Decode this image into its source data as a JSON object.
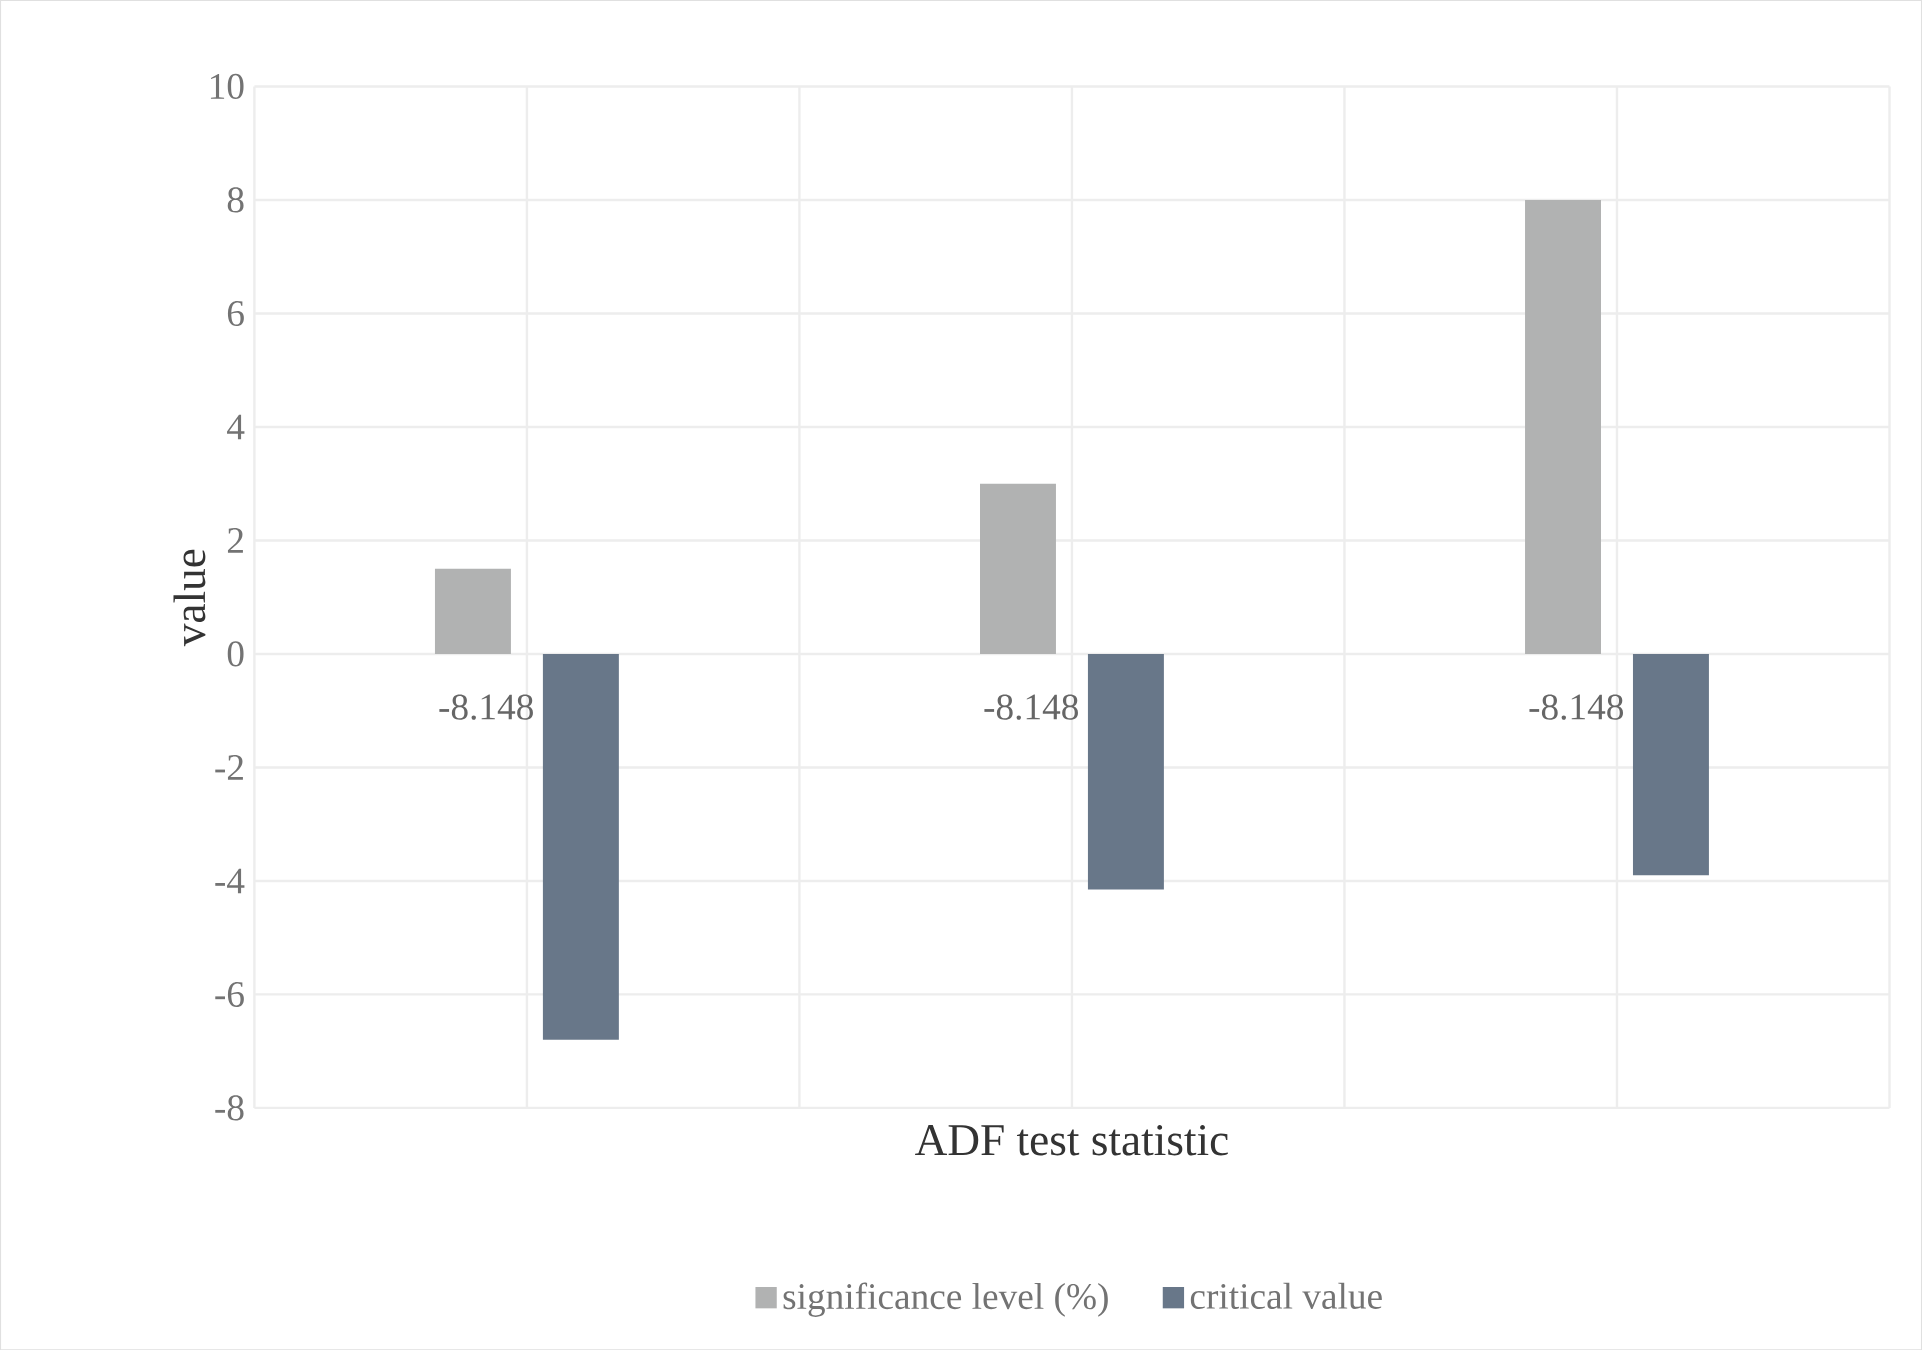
{
  "chart_data": {
    "type": "bar",
    "xlabel": "ADF test statistic",
    "ylabel": "value",
    "categories": [
      null,
      null,
      null
    ],
    "series": [
      {
        "name": "significance level (%)",
        "color": "#b1b2b2",
        "values": [
          1.5,
          3.0,
          8.0
        ]
      },
      {
        "name": "critical value",
        "color": "#687789",
        "values": [
          -6.8,
          -4.15,
          -3.9
        ]
      }
    ],
    "annotations": [
      "-8.148",
      "-8.148",
      "-8.148"
    ],
    "ylim": [
      -8,
      10
    ],
    "yticks": [
      -8,
      -6,
      -4,
      -2,
      0,
      2,
      4,
      6,
      8,
      10
    ],
    "grid": true,
    "legend": "bottom"
  }
}
